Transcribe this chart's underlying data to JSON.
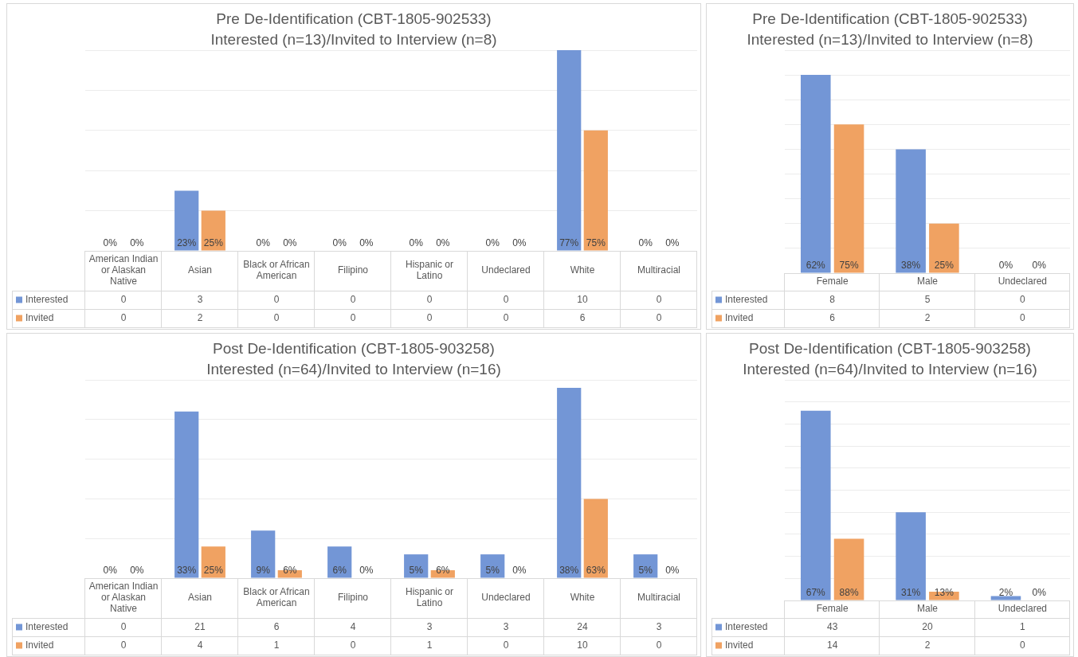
{
  "chart_data": [
    {
      "type": "bar",
      "title": "Pre De-Identification (CBT-1805-902533)",
      "subtitle": "Interested (n=13)/Invited to Interview (n=8)",
      "categories": [
        "American Indian or Alaskan Native",
        "Asian",
        "Black or African American",
        "Filipino",
        "Hispanic or Latino",
        "Undeclared",
        "White",
        "Multiracial"
      ],
      "series": [
        {
          "name": "Interested",
          "color": "#7396d6",
          "values": [
            0,
            3,
            0,
            0,
            0,
            0,
            10,
            0
          ]
        },
        {
          "name": "Invited",
          "color": "#f0a262",
          "values": [
            0,
            2,
            0,
            0,
            0,
            0,
            6,
            0
          ]
        }
      ],
      "annotations": [
        {
          "text": "0%",
          "x": "American Indian or Alaskan Native",
          "y": 0
        },
        {
          "text": "0%",
          "x": "American Indian or Alaskan Native",
          "y": 0
        },
        {
          "text": "23%",
          "x": "Asian",
          "y": 0
        },
        {
          "text": "25%",
          "x": "Asian",
          "y": 0
        },
        {
          "text": "0%",
          "x": "Black or African American",
          "y": 0
        },
        {
          "text": "0%",
          "x": "Black or African American",
          "y": 0
        },
        {
          "text": "0%",
          "x": "Filipino",
          "y": 0
        },
        {
          "text": "0%",
          "x": "Filipino",
          "y": 0
        },
        {
          "text": "0%",
          "x": "Hispanic or Latino",
          "y": 0
        },
        {
          "text": "0%",
          "x": "Hispanic or Latino",
          "y": 0
        },
        {
          "text": "0%",
          "x": "Undeclared",
          "y": 0
        },
        {
          "text": "0%",
          "x": "Undeclared",
          "y": 0
        },
        {
          "text": "77%",
          "x": "White",
          "y": 0
        },
        {
          "text": "75%",
          "x": "White",
          "y": 0
        },
        {
          "text": "0%",
          "x": "Multiracial",
          "y": 0
        },
        {
          "text": "0%",
          "x": "Multiracial",
          "y": 0
        }
      ],
      "ylim": [
        0,
        10
      ],
      "yticks": [
        {
          "value": 0,
          "label": null
        },
        {
          "value": 2,
          "label": null
        },
        {
          "value": 4,
          "label": null
        },
        {
          "value": 6,
          "label": null
        },
        {
          "value": 8,
          "label": null
        },
        {
          "value": 10,
          "label": null
        }
      ],
      "grid": "y",
      "legend": "bottom",
      "data_labels": true
    },
    {
      "type": "bar",
      "title": "Pre De-Identification (CBT-1805-902533)",
      "subtitle": "Interested (n=13)/Invited to Interview (n=8)",
      "categories": [
        "Female",
        "Male",
        "Undeclared"
      ],
      "series": [
        {
          "name": "Interested",
          "color": "#7396d6",
          "values": [
            8,
            5,
            0
          ]
        },
        {
          "name": "Invited",
          "color": "#f0a262",
          "values": [
            6,
            2,
            0
          ]
        }
      ],
      "annotations": [
        {
          "text": "62%",
          "x": "Female",
          "y": 0
        },
        {
          "text": "75%",
          "x": "Female",
          "y": 0
        },
        {
          "text": "38%",
          "x": "Male",
          "y": 0
        },
        {
          "text": "25%",
          "x": "Male",
          "y": 0
        },
        {
          "text": "0%",
          "x": "Undeclared",
          "y": 0
        },
        {
          "text": "0%",
          "x": "Undeclared",
          "y": 0
        }
      ],
      "ylim": [
        0,
        9
      ],
      "yticks": [
        {
          "value": 0,
          "label": null
        },
        {
          "value": 1,
          "label": null
        },
        {
          "value": 2,
          "label": null
        },
        {
          "value": 3,
          "label": null
        },
        {
          "value": 4,
          "label": null
        },
        {
          "value": 5,
          "label": null
        },
        {
          "value": 6,
          "label": null
        },
        {
          "value": 7,
          "label": null
        },
        {
          "value": 8,
          "label": null
        },
        {
          "value": 9,
          "label": null
        }
      ],
      "grid": "y",
      "legend": "bottom",
      "data_labels": true
    },
    {
      "type": "bar",
      "title": "Post De-Identification (CBT-1805-903258)",
      "subtitle": "Interested (n=64)/Invited to Interview (n=16)",
      "categories": [
        "American Indian or Alaskan Native",
        "Asian",
        "Black or African American",
        "Filipino",
        "Hispanic or Latino",
        "Undeclared",
        "White",
        "Multiracial"
      ],
      "series": [
        {
          "name": "Interested",
          "color": "#7396d6",
          "values": [
            0,
            21,
            6,
            4,
            3,
            3,
            24,
            3
          ]
        },
        {
          "name": "Invited",
          "color": "#f0a262",
          "values": [
            0,
            4,
            1,
            0,
            1,
            0,
            10,
            0
          ]
        }
      ],
      "annotations": [
        {
          "text": "0%",
          "x": "American Indian or Alaskan Native",
          "y": 0
        },
        {
          "text": "0%",
          "x": "American Indian or Alaskan Native",
          "y": 0
        },
        {
          "text": "33%",
          "x": "Asian",
          "y": 0
        },
        {
          "text": "25%",
          "x": "Asian",
          "y": 0
        },
        {
          "text": "9%",
          "x": "Black or African American",
          "y": 0
        },
        {
          "text": "6%",
          "x": "Black or African American",
          "y": 0
        },
        {
          "text": "6%",
          "x": "Filipino",
          "y": 0
        },
        {
          "text": "0%",
          "x": "Filipino",
          "y": 0
        },
        {
          "text": "5%",
          "x": "Hispanic or Latino",
          "y": 0
        },
        {
          "text": "6%",
          "x": "Hispanic or Latino",
          "y": 0
        },
        {
          "text": "5%",
          "x": "Undeclared",
          "y": 0
        },
        {
          "text": "0%",
          "x": "Undeclared",
          "y": 0
        },
        {
          "text": "38%",
          "x": "White",
          "y": 0
        },
        {
          "text": "63%",
          "x": "White",
          "y": 0
        },
        {
          "text": "5%",
          "x": "Multiracial",
          "y": 0
        },
        {
          "text": "0%",
          "x": "Multiracial",
          "y": 0
        }
      ],
      "ylim": [
        0,
        25
      ],
      "yticks": [
        {
          "value": 0,
          "label": null
        },
        {
          "value": 5,
          "label": null
        },
        {
          "value": 10,
          "label": null
        },
        {
          "value": 15,
          "label": null
        },
        {
          "value": 20,
          "label": null
        },
        {
          "value": 25,
          "label": null
        }
      ],
      "grid": "y",
      "legend": "bottom",
      "data_labels": true
    },
    {
      "type": "bar",
      "title": "Post De-Identification (CBT-1805-903258)",
      "subtitle": "Interested (n=64)/Invited to Interview (n=16)",
      "categories": [
        "Female",
        "Male",
        "Undeclared"
      ],
      "series": [
        {
          "name": "Interested",
          "color": "#7396d6",
          "values": [
            43,
            20,
            1
          ]
        },
        {
          "name": "Invited",
          "color": "#f0a262",
          "values": [
            14,
            2,
            0
          ]
        }
      ],
      "annotations": [
        {
          "text": "67%",
          "x": "Female",
          "y": 0
        },
        {
          "text": "88%",
          "x": "Female",
          "y": 0
        },
        {
          "text": "31%",
          "x": "Male",
          "y": 0
        },
        {
          "text": "13%",
          "x": "Male",
          "y": 0
        },
        {
          "text": "2%",
          "x": "Undeclared",
          "y": 0
        },
        {
          "text": "0%",
          "x": "Undeclared",
          "y": 0
        }
      ],
      "ylim": [
        0,
        50
      ],
      "yticks": [
        {
          "value": 0,
          "label": null
        },
        {
          "value": 5,
          "label": null
        },
        {
          "value": 10,
          "label": null
        },
        {
          "value": 15,
          "label": null
        },
        {
          "value": 20,
          "label": null
        },
        {
          "value": 25,
          "label": null
        },
        {
          "value": 30,
          "label": null
        },
        {
          "value": 35,
          "label": null
        },
        {
          "value": 40,
          "label": null
        },
        {
          "value": 45,
          "label": null
        },
        {
          "value": 50,
          "label": null
        }
      ],
      "grid": "y",
      "legend": "bottom",
      "data_labels": true
    }
  ]
}
